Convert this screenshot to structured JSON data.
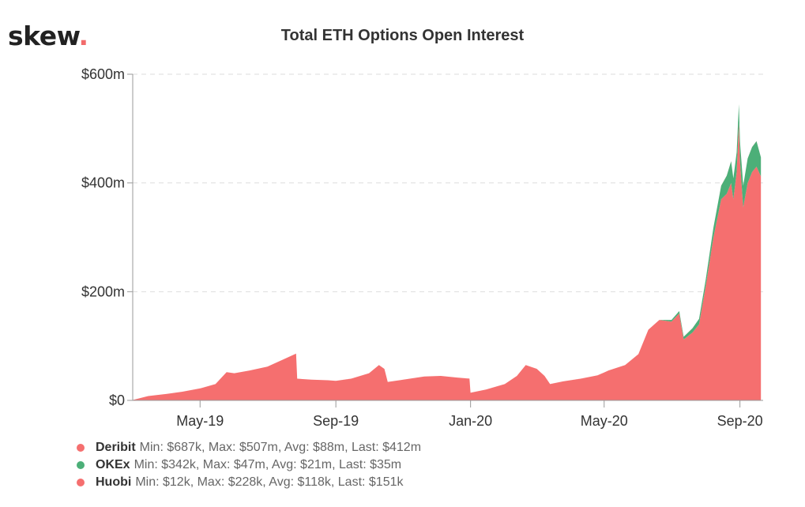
{
  "brand": {
    "name": "skew",
    "dot": "."
  },
  "chart_data": {
    "type": "area",
    "stacked": true,
    "title": "Total ETH Options Open Interest",
    "xlabel": "",
    "ylabel": "",
    "x_range": [
      "2019-03-01",
      "2020-09-22"
    ],
    "ylim": [
      0,
      600
    ],
    "y_unit": "million USD",
    "yticks": [
      {
        "value": 0,
        "label": "$0"
      },
      {
        "value": 200,
        "label": "$200m"
      },
      {
        "value": 400,
        "label": "$400m"
      },
      {
        "value": 600,
        "label": "$600m"
      }
    ],
    "xticks": [
      {
        "date": "2019-05-01",
        "label": "May-19"
      },
      {
        "date": "2019-09-01",
        "label": "Sep-19"
      },
      {
        "date": "2020-01-01",
        "label": "Jan-20"
      },
      {
        "date": "2020-05-01",
        "label": "May-20"
      },
      {
        "date": "2020-09-01",
        "label": "Sep-20"
      }
    ],
    "grid": {
      "horizontal": true,
      "style": "dashed"
    },
    "legend_position": "bottom-left",
    "series": [
      {
        "name": "Deribit",
        "stats": "Min: $687k, Max: $507m, Avg: $88m, Last: $412m",
        "color": "#f56f6f",
        "points": [
          [
            "2019-03-01",
            0.7
          ],
          [
            "2019-03-15",
            8
          ],
          [
            "2019-04-01",
            12
          ],
          [
            "2019-04-15",
            16
          ],
          [
            "2019-05-01",
            22
          ],
          [
            "2019-05-15",
            30
          ],
          [
            "2019-05-25",
            52
          ],
          [
            "2019-06-01",
            50
          ],
          [
            "2019-06-15",
            55
          ],
          [
            "2019-07-01",
            62
          ],
          [
            "2019-07-15",
            75
          ],
          [
            "2019-07-27",
            86
          ],
          [
            "2019-07-28",
            40
          ],
          [
            "2019-08-10",
            38
          ],
          [
            "2019-08-25",
            37
          ],
          [
            "2019-09-01",
            36
          ],
          [
            "2019-09-15",
            40
          ],
          [
            "2019-10-01",
            50
          ],
          [
            "2019-10-10",
            65
          ],
          [
            "2019-10-15",
            58
          ],
          [
            "2019-10-18",
            34
          ],
          [
            "2019-11-01",
            38
          ],
          [
            "2019-11-20",
            44
          ],
          [
            "2019-12-05",
            45
          ],
          [
            "2019-12-20",
            42
          ],
          [
            "2019-12-31",
            40
          ],
          [
            "2020-01-01",
            14
          ],
          [
            "2020-01-15",
            20
          ],
          [
            "2020-02-01",
            30
          ],
          [
            "2020-02-12",
            45
          ],
          [
            "2020-02-20",
            65
          ],
          [
            "2020-03-01",
            58
          ],
          [
            "2020-03-08",
            45
          ],
          [
            "2020-03-13",
            30
          ],
          [
            "2020-03-25",
            35
          ],
          [
            "2020-04-10",
            40
          ],
          [
            "2020-04-25",
            46
          ],
          [
            "2020-05-05",
            55
          ],
          [
            "2020-05-20",
            65
          ],
          [
            "2020-06-01",
            85
          ],
          [
            "2020-06-10",
            130
          ],
          [
            "2020-06-20",
            148
          ],
          [
            "2020-07-01",
            145
          ],
          [
            "2020-07-08",
            160
          ],
          [
            "2020-07-12",
            112
          ],
          [
            "2020-07-20",
            125
          ],
          [
            "2020-07-26",
            140
          ],
          [
            "2020-08-01",
            210
          ],
          [
            "2020-08-08",
            300
          ],
          [
            "2020-08-15",
            370
          ],
          [
            "2020-08-20",
            380
          ],
          [
            "2020-08-24",
            400
          ],
          [
            "2020-08-26",
            370
          ],
          [
            "2020-08-29",
            420
          ],
          [
            "2020-08-31",
            510
          ],
          [
            "2020-09-01",
            440
          ],
          [
            "2020-09-04",
            355
          ],
          [
            "2020-09-08",
            400
          ],
          [
            "2020-09-12",
            420
          ],
          [
            "2020-09-16",
            430
          ],
          [
            "2020-09-20",
            412
          ]
        ]
      },
      {
        "name": "OKEx",
        "stats": "Min: $342k, Max: $47m, Avg: $21m, Last: $35m",
        "color": "#4caf78",
        "points": [
          [
            "2019-03-01",
            0
          ],
          [
            "2020-06-20",
            0
          ],
          [
            "2020-07-01",
            3
          ],
          [
            "2020-07-12",
            5
          ],
          [
            "2020-07-26",
            10
          ],
          [
            "2020-08-01",
            12
          ],
          [
            "2020-08-08",
            18
          ],
          [
            "2020-08-15",
            25
          ],
          [
            "2020-08-24",
            40
          ],
          [
            "2020-08-31",
            35
          ],
          [
            "2020-09-08",
            45
          ],
          [
            "2020-09-16",
            47
          ],
          [
            "2020-09-20",
            35
          ]
        ]
      },
      {
        "name": "Huobi",
        "stats": "Min: $12k, Max: $228k, Avg: $118k, Last: $151k",
        "color": "#f56f6f",
        "points": [
          [
            "2019-03-01",
            0.01
          ],
          [
            "2020-05-01",
            0.05
          ],
          [
            "2020-09-20",
            0.15
          ]
        ]
      }
    ]
  }
}
